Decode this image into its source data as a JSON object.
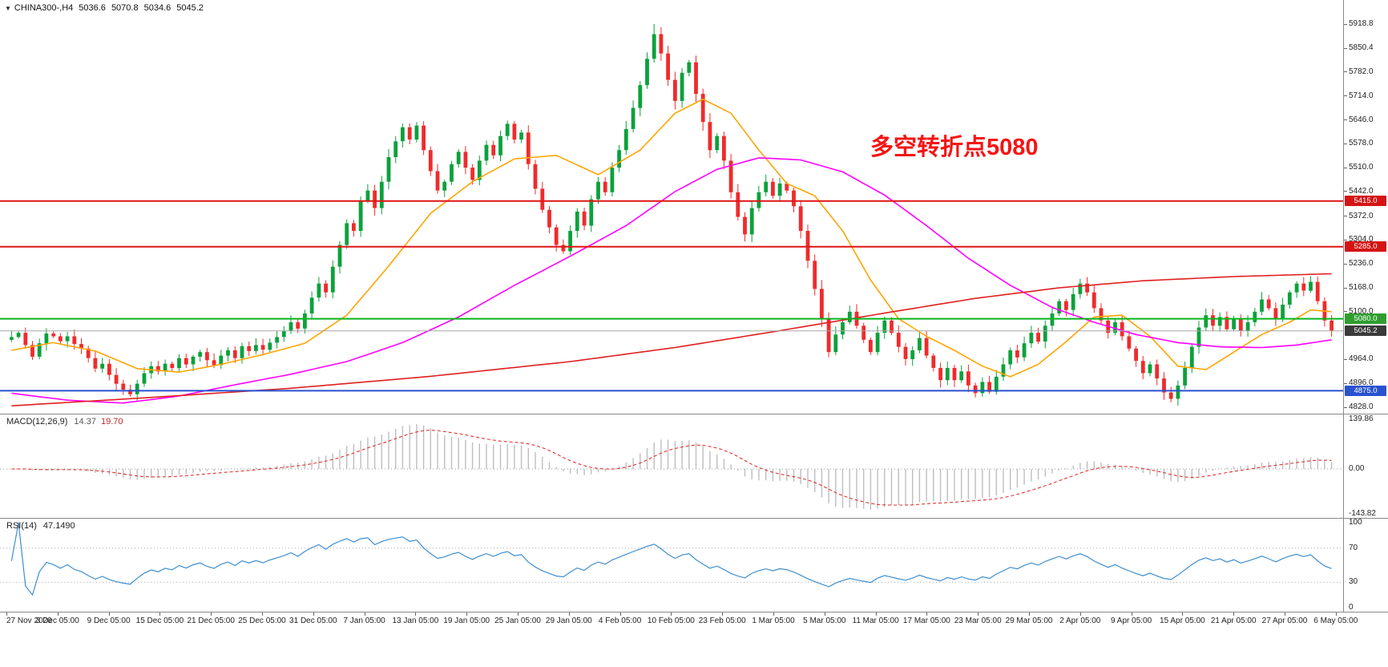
{
  "window": {
    "symbol_info": {
      "collapse_icon": "▼",
      "symbol": "CHINA300-,H4",
      "open": "5036.6",
      "high": "5070.8",
      "low": "5034.6",
      "close": "5045.2"
    },
    "annotation": {
      "text": "多空转折点5080",
      "color": "#F51414"
    }
  },
  "colors": {
    "background": "#FFFFFF",
    "candle_up": "#0CA13C",
    "candle_down": "#F02B2B",
    "macd_histogram": "#BEBEBE",
    "macd_signal": "#E03030",
    "rsi_line": "#3E8ED0",
    "current_price_line": "#A8A8A8",
    "current_price_tag_bg": "#3A3A3A",
    "axis_text": "#222222",
    "panel_border": "#8A8A8A"
  },
  "chart_data": {
    "type": "candlestick",
    "symbol": "CHINA300-",
    "timeframe": "H4",
    "x_labels": [
      "27 Nov 2020",
      "3 Dec 05:00",
      "9 Dec 05:00",
      "15 Dec 05:00",
      "21 Dec 05:00",
      "25 Dec 05:00",
      "31 Dec 05:00",
      "7 Jan 05:00",
      "13 Jan 05:00",
      "19 Jan 05:00",
      "25 Jan 05:00",
      "29 Jan 05:00",
      "4 Feb 05:00",
      "10 Feb 05:00",
      "23 Feb 05:00",
      "1 Mar 05:00",
      "5 Mar 05:00",
      "11 Mar 05:00",
      "17 Mar 05:00",
      "23 Mar 05:00",
      "29 Mar 05:00",
      "2 Apr 05:00",
      "9 Apr 05:00",
      "15 Apr 05:00",
      "21 Apr 05:00",
      "27 Apr 05:00",
      "6 May 05:00"
    ],
    "y_axis": {
      "labels": [
        "5918.8",
        "5850.4",
        "5782.0",
        "5714.0",
        "5646.0",
        "5578.0",
        "5510.0",
        "5442.0",
        "5372.0",
        "5304.0",
        "5236.0",
        "5168.0",
        "5100.0",
        "4964.0",
        "4896.0",
        "4828.0"
      ],
      "min": 4814,
      "max": 5973
    },
    "levels": [
      {
        "value": 5415.0,
        "label": "5415.0",
        "line_color": "#E01414",
        "tag_bg": "#D51414",
        "line_width": 2
      },
      {
        "value": 5285.0,
        "label": "5285.0",
        "line_color": "#E01414",
        "tag_bg": "#D51414",
        "line_width": 2
      },
      {
        "value": 5080.0,
        "label": "5080.0",
        "line_color": "#08B41E",
        "tag_bg": "#2F9E2F",
        "line_width": 2
      },
      {
        "value": 4875.0,
        "label": "4875.0",
        "line_color": "#2952D1",
        "tag_bg": "#2952D1",
        "line_width": 2
      }
    ],
    "current_price": {
      "value": 5045.2,
      "label": "5045.2"
    },
    "price": {
      "first_open": 5020,
      "closes": [
        5028,
        5040,
        5005,
        4972,
        5010,
        5038,
        5030,
        5016,
        5030,
        5008,
        4995,
        4968,
        4938,
        4952,
        4920,
        4895,
        4878,
        4865,
        4895,
        4925,
        4945,
        4930,
        4952,
        4940,
        4968,
        4950,
        4972,
        4985,
        4962,
        4948,
        4975,
        4990,
        4968,
        5002,
        4988,
        5005,
        4992,
        5012,
        5028,
        5045,
        5070,
        5052,
        5095,
        5140,
        5180,
        5155,
        5228,
        5290,
        5352,
        5330,
        5415,
        5445,
        5395,
        5470,
        5540,
        5585,
        5625,
        5590,
        5630,
        5560,
        5500,
        5445,
        5470,
        5520,
        5555,
        5510,
        5475,
        5530,
        5575,
        5545,
        5600,
        5635,
        5590,
        5610,
        5520,
        5450,
        5390,
        5340,
        5290,
        5272,
        5330,
        5385,
        5345,
        5420,
        5470,
        5440,
        5510,
        5560,
        5620,
        5680,
        5745,
        5820,
        5890,
        5835,
        5760,
        5700,
        5780,
        5810,
        5720,
        5640,
        5560,
        5600,
        5530,
        5440,
        5370,
        5320,
        5395,
        5440,
        5470,
        5430,
        5465,
        5445,
        5400,
        5330,
        5245,
        5165,
        5080,
        4985,
        5035,
        5070,
        5100,
        5060,
        5020,
        4985,
        5040,
        5075,
        5040,
        5000,
        4965,
        4990,
        5025,
        4975,
        4940,
        4905,
        4940,
        4905,
        4930,
        4890,
        4868,
        4900,
        4872,
        4915,
        4950,
        4990,
        4970,
        5010,
        5040,
        5015,
        5060,
        5095,
        5130,
        5105,
        5150,
        5180,
        5155,
        5110,
        5075,
        5040,
        5070,
        5030,
        4995,
        4960,
        4925,
        4950,
        4910,
        4870,
        4852,
        4890,
        4940,
        5000,
        5055,
        5090,
        5060,
        5085,
        5050,
        5080,
        5045,
        5070,
        5100,
        5135,
        5110,
        5080,
        5120,
        5155,
        5180,
        5160,
        5185,
        5130,
        5075,
        5045.2
      ],
      "wick_overrides": {
        "17": {
          "low": 4858
        },
        "92": {
          "high": 5918.8
        },
        "138": {
          "low": 4856
        },
        "166": {
          "low": 4842
        }
      }
    },
    "moving_averages": [
      {
        "name": "ma-fast-orange",
        "color": "#FFA500",
        "width": 1.6,
        "points": [
          [
            0,
            4990
          ],
          [
            6,
            5012
          ],
          [
            12,
            4988
          ],
          [
            18,
            4938
          ],
          [
            24,
            4928
          ],
          [
            30,
            4950
          ],
          [
            36,
            4978
          ],
          [
            42,
            5010
          ],
          [
            48,
            5090
          ],
          [
            54,
            5230
          ],
          [
            60,
            5380
          ],
          [
            66,
            5470
          ],
          [
            72,
            5535
          ],
          [
            78,
            5545
          ],
          [
            84,
            5490
          ],
          [
            90,
            5560
          ],
          [
            95,
            5665
          ],
          [
            99,
            5705
          ],
          [
            103,
            5665
          ],
          [
            107,
            5560
          ],
          [
            111,
            5465
          ],
          [
            115,
            5430
          ],
          [
            119,
            5330
          ],
          [
            123,
            5190
          ],
          [
            127,
            5080
          ],
          [
            131,
            5030
          ],
          [
            135,
            4990
          ],
          [
            139,
            4945
          ],
          [
            143,
            4915
          ],
          [
            147,
            4950
          ],
          [
            151,
            5015
          ],
          [
            155,
            5085
          ],
          [
            159,
            5090
          ],
          [
            163,
            5030
          ],
          [
            167,
            4945
          ],
          [
            171,
            4935
          ],
          [
            175,
            4985
          ],
          [
            179,
            5035
          ],
          [
            183,
            5070
          ],
          [
            186,
            5105
          ],
          [
            189,
            5100
          ]
        ]
      },
      {
        "name": "ma-mid-magenta",
        "color": "#FF00FF",
        "width": 1.6,
        "points": [
          [
            0,
            4868
          ],
          [
            8,
            4848
          ],
          [
            16,
            4840
          ],
          [
            24,
            4860
          ],
          [
            32,
            4892
          ],
          [
            40,
            4922
          ],
          [
            48,
            4958
          ],
          [
            56,
            5012
          ],
          [
            64,
            5085
          ],
          [
            72,
            5175
          ],
          [
            80,
            5258
          ],
          [
            88,
            5345
          ],
          [
            95,
            5442
          ],
          [
            101,
            5505
          ],
          [
            107,
            5538
          ],
          [
            113,
            5532
          ],
          [
            119,
            5498
          ],
          [
            125,
            5432
          ],
          [
            131,
            5345
          ],
          [
            137,
            5252
          ],
          [
            143,
            5175
          ],
          [
            149,
            5112
          ],
          [
            155,
            5070
          ],
          [
            161,
            5035
          ],
          [
            167,
            5012
          ],
          [
            173,
            5000
          ],
          [
            179,
            4998
          ],
          [
            184,
            5005
          ],
          [
            189,
            5020
          ]
        ]
      },
      {
        "name": "ma-slow-red",
        "color": "#E02020",
        "width": 1.6,
        "points": [
          [
            0,
            4832
          ],
          [
            20,
            4856
          ],
          [
            40,
            4882
          ],
          [
            60,
            4916
          ],
          [
            80,
            4958
          ],
          [
            95,
            4998
          ],
          [
            110,
            5046
          ],
          [
            125,
            5096
          ],
          [
            138,
            5138
          ],
          [
            150,
            5168
          ],
          [
            162,
            5188
          ],
          [
            175,
            5200
          ],
          [
            189,
            5208
          ]
        ]
      }
    ],
    "macd": {
      "label": "MACD(12,26,9)",
      "value_main": "14.37",
      "value_signal": "19.70",
      "fast": 12,
      "slow": 26,
      "signal": 9,
      "axis_labels": [
        "139.86",
        "0.00",
        "-143.82"
      ]
    },
    "rsi": {
      "label": "RSI(14)",
      "value": "47.1490",
      "period": 14,
      "axis_labels": [
        "100",
        "70",
        "30",
        "0"
      ],
      "guide_levels": [
        70,
        30
      ]
    }
  }
}
